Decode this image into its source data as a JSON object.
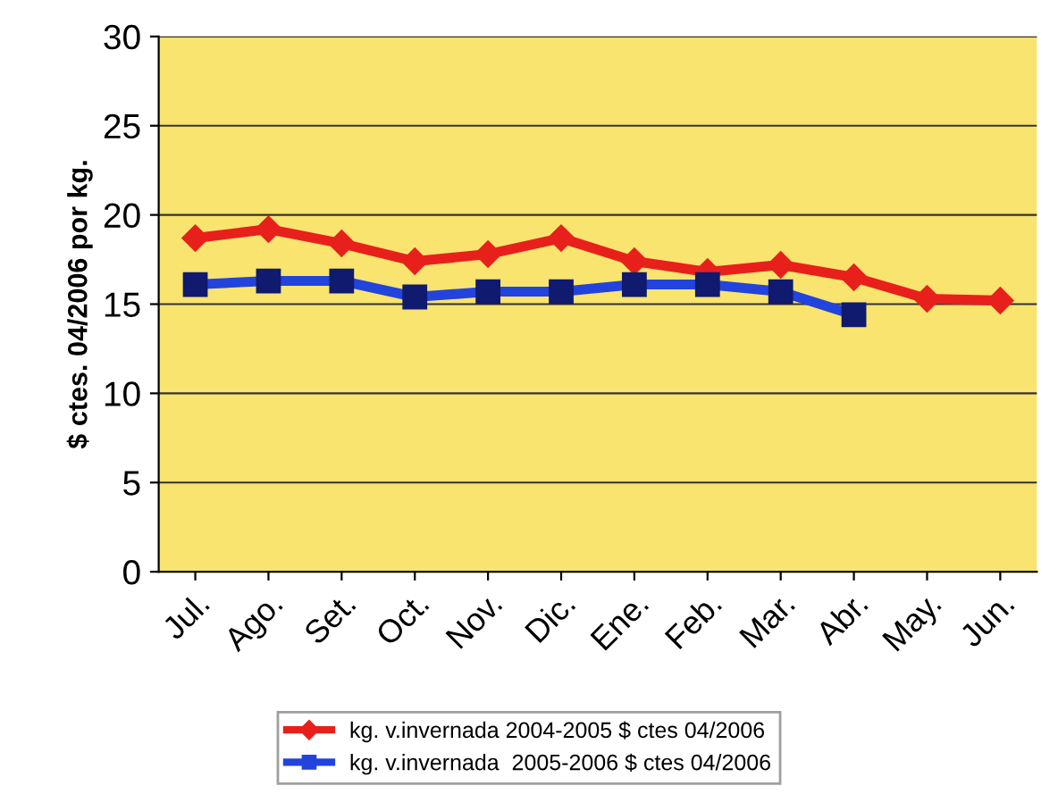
{
  "chart_data": {
    "type": "line",
    "ylabel": "$ ctes. 04/2006 por kg.",
    "categories": [
      "Jul.",
      "Ago.",
      "Set.",
      "Oct.",
      "Nov.",
      "Dic.",
      "Ene.",
      "Feb.",
      "Mar.",
      "Abr.",
      "May.",
      "Jun."
    ],
    "series": [
      {
        "name": "kg. v.invernada 2004-2005 $ ctes 04/2006",
        "color": "#e8201c",
        "marker": "diamond",
        "values": [
          18.7,
          19.2,
          18.4,
          17.4,
          17.8,
          18.7,
          17.4,
          16.8,
          17.2,
          16.5,
          15.3,
          15.2
        ]
      },
      {
        "name": "kg. v.invernada  2005-2006 $ ctes 04/2006",
        "color": "#2244dd",
        "marker": "square",
        "values": [
          16.1,
          16.3,
          16.3,
          15.4,
          15.7,
          15.7,
          16.1,
          16.1,
          15.7,
          14.4,
          null,
          null
        ]
      }
    ],
    "ylim": [
      0,
      30
    ],
    "yticks": [
      0,
      5,
      10,
      15,
      20,
      25,
      30
    ],
    "grid": "y",
    "legend": "bottom",
    "line_style": "solid"
  }
}
